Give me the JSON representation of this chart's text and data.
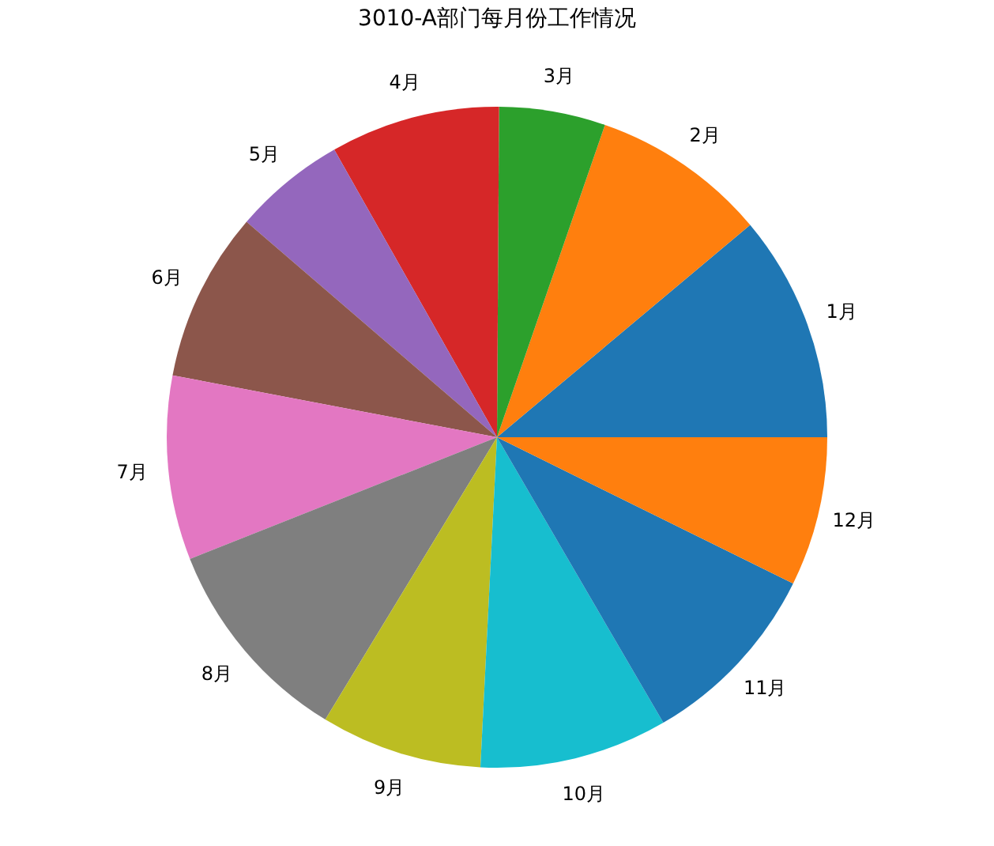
{
  "chart_data": {
    "type": "pie",
    "title": "3010-A部门每月份工作情况",
    "categories": [
      "1月",
      "2月",
      "3月",
      "4月",
      "5月",
      "6月",
      "7月",
      "8月",
      "9月",
      "10月",
      "11月",
      "12月"
    ],
    "values": [
      11.1,
      8.6,
      5.2,
      8.3,
      5.5,
      8.3,
      9.0,
      10.3,
      7.9,
      9.2,
      9.3,
      7.3
    ],
    "colors": [
      "#1f77b4",
      "#ff7f0e",
      "#2ca02c",
      "#d62728",
      "#9467bd",
      "#8c564b",
      "#e377c2",
      "#7f7f7f",
      "#bcbd22",
      "#17becf",
      "#1f77b4",
      "#ff7f0e"
    ],
    "legend": false
  }
}
